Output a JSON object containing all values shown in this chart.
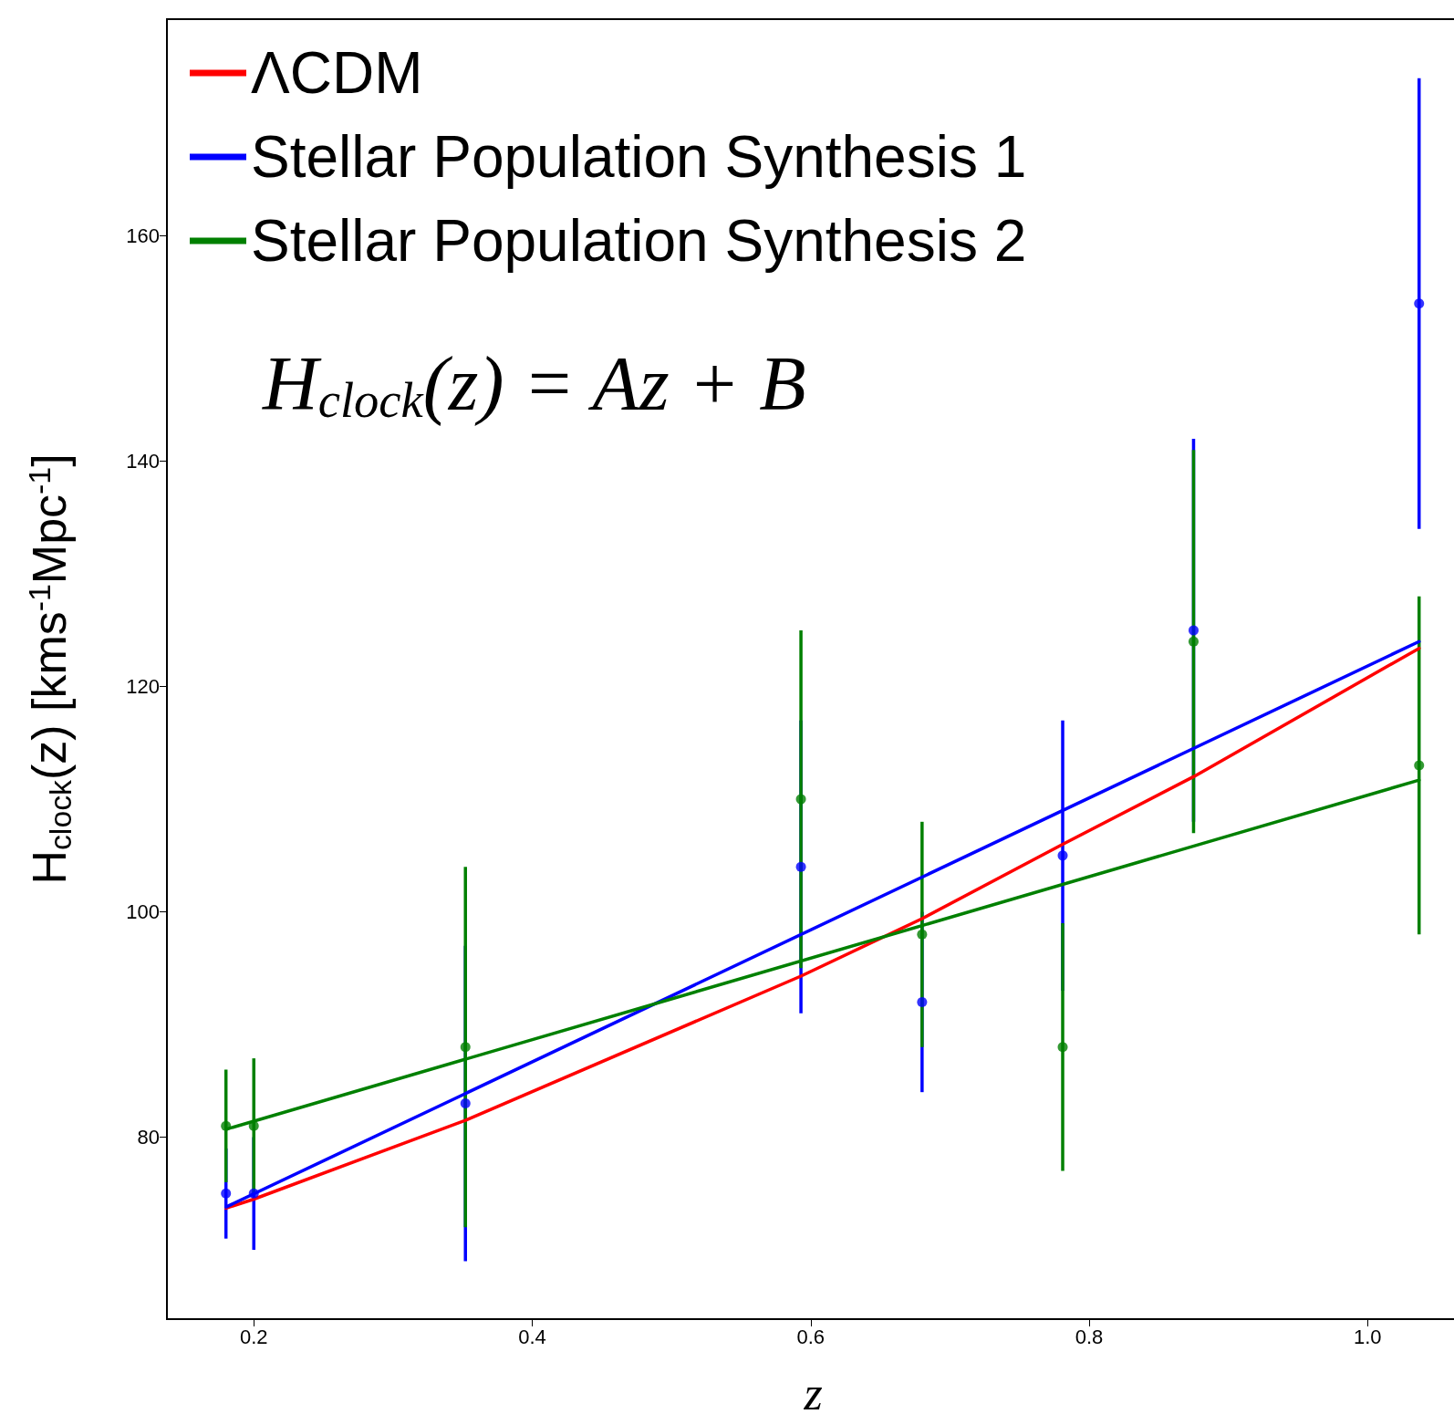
{
  "chart_data": {
    "type": "line",
    "xlabel": "z",
    "ylabel": "H$_{clock}$(z) [kms$^{-1}$Mpc$^{-1}$]",
    "annotations": [
      "H$_{clock}$(z) = Az + B"
    ],
    "xlim": [
      0.1376,
      1.066
    ],
    "ylim": [
      63.85,
      179.25
    ],
    "xticks": [
      {
        "value": 0.2,
        "label": "0.2"
      },
      {
        "value": 0.4,
        "label": "0.4"
      },
      {
        "value": 0.6,
        "label": "0.6"
      },
      {
        "value": 0.8,
        "label": "0.8"
      },
      {
        "value": 1,
        "label": "1.0"
      }
    ],
    "yticks": [
      80,
      100,
      120,
      140,
      160
    ],
    "grid": false,
    "legend": "top left",
    "marker": "none",
    "line_style": "solid",
    "series": [
      {
        "name": "ΛCDM",
        "color": "#ff0000",
        "x": [
          0.18,
          0.2,
          0.352,
          0.593,
          0.68,
          0.781,
          0.875,
          1.037
        ],
        "values": [
          73.7,
          74.5,
          81.5,
          94.3,
          99.4,
          106,
          112,
          123.4
        ]
      },
      {
        "name": "Stellar Population Synthesis 1",
        "color": "#0000ff",
        "x": [
          0.18,
          1.037
        ],
        "values": [
          73.8,
          124
        ]
      },
      {
        "name": "Stellar Population Synthesis 2",
        "color": "#008000",
        "x": [
          0.18,
          1.037
        ],
        "values": [
          80.7,
          111.7
        ]
      },
      {
        "type": "scatter",
        "marker": "circle",
        "color": "#0000ff",
        "x": [
          0.18,
          0.2,
          0.352,
          0.593,
          0.68,
          0.781,
          0.875,
          1.037
        ],
        "values": [
          75,
          75,
          83,
          104,
          92,
          105,
          125,
          154
        ],
        "errors": [
          4,
          5,
          14,
          13,
          8,
          12,
          17,
          20
        ]
      },
      {
        "type": "scatter",
        "marker": "circle",
        "color": "#008000",
        "x": [
          0.18,
          0.2,
          0.352,
          0.593,
          0.68,
          0.781,
          0.875,
          1.037
        ],
        "values": [
          81,
          81,
          88,
          110,
          98,
          88,
          124,
          113
        ],
        "errors": [
          5,
          6,
          16,
          15,
          10,
          11,
          17,
          15
        ]
      }
    ]
  }
}
